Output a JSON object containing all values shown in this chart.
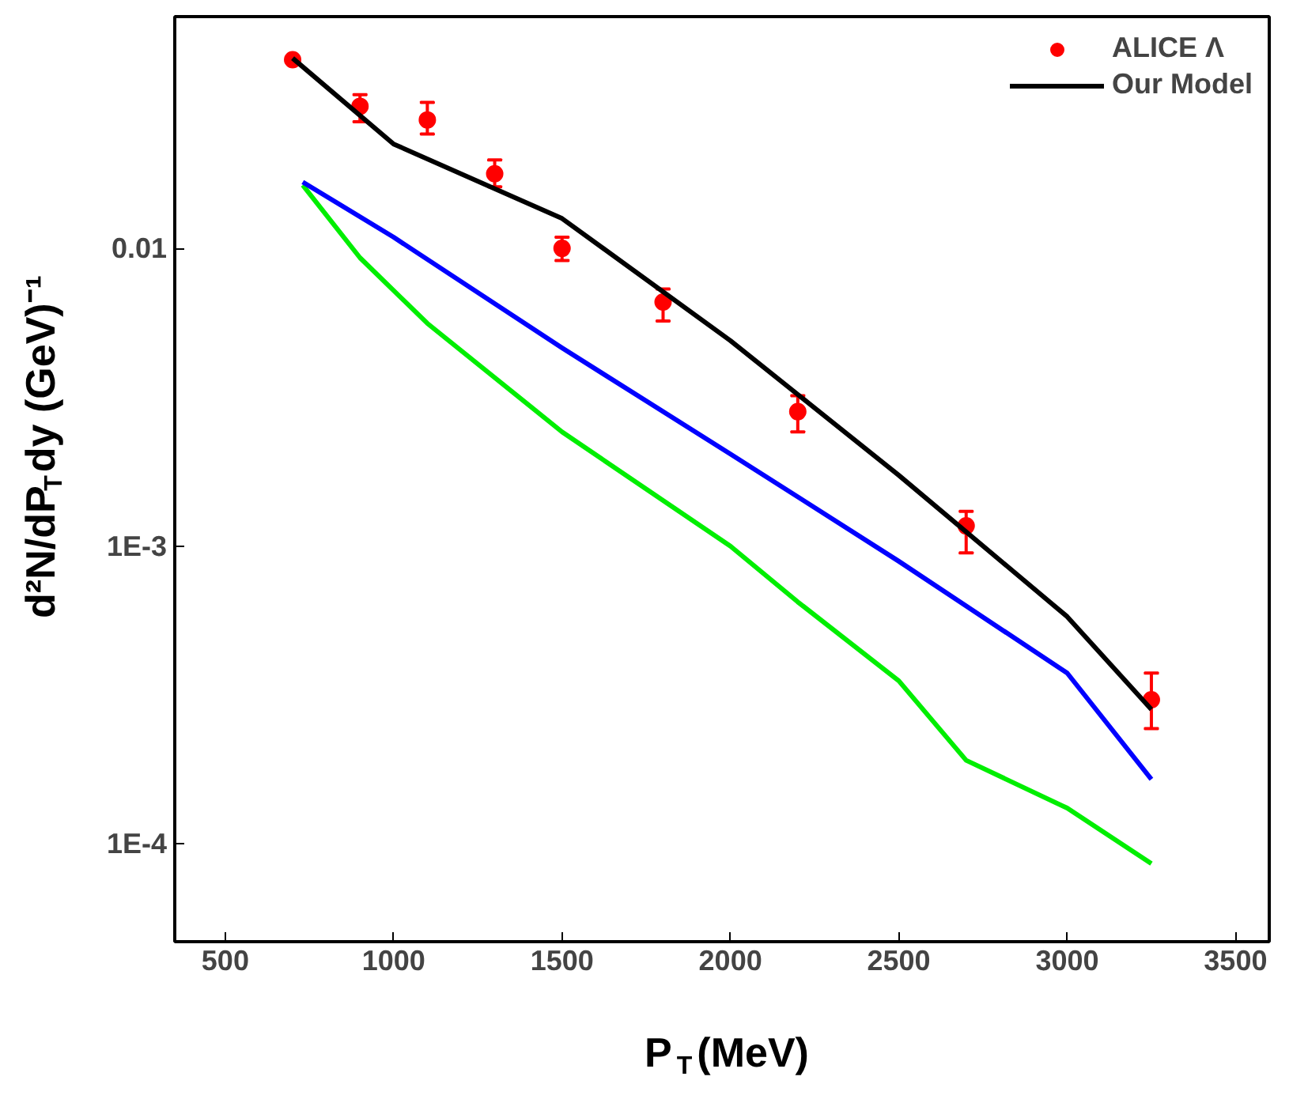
{
  "chart_data": {
    "type": "line",
    "xlabel": "P$_{T}$(MeV)",
    "ylabel": "d²N/dP$_{T}$dy (GeV)⁻¹",
    "log": "y",
    "grid": false,
    "legend": "top right",
    "xlim": [
      350,
      3600
    ],
    "xticks": [
      500,
      1000,
      1500,
      2000,
      2500,
      3000,
      3500
    ],
    "ylim": [
      4.7e-05,
      0.06
    ],
    "yticks": [
      {
        "value": 0.01,
        "label": "0.01"
      },
      {
        "value": 0.001,
        "label": "1E-3"
      },
      {
        "value": 0.0001,
        "label": "1E-4"
      }
    ],
    "series": [
      {
        "name": "ALICE Λ",
        "type": "scatter",
        "marker": "circle",
        "color": "#ff0000",
        "x": [
          700,
          900,
          1100,
          1300,
          1500,
          1800,
          2200,
          2700,
          3250
        ],
        "values": [
          0.043,
          0.03,
          0.027,
          0.0178,
          0.01,
          0.0066,
          0.00283,
          0.00117,
          0.000305
        ],
        "errors": [
          null,
          [
            0.0266,
            0.0328
          ],
          [
            0.0242,
            0.0309
          ],
          [
            0.0161,
            0.0198
          ],
          [
            0.0091,
            0.0109
          ],
          [
            0.0057,
            0.0073
          ],
          [
            0.00242,
            0.0032
          ],
          [
            0.00095,
            0.00131
          ],
          [
            0.000244,
            0.000375
          ]
        ]
      },
      {
        "name": "Our Model",
        "color": "#000000",
        "x": [
          700,
          1000,
          1500,
          2000,
          2500,
          3000,
          3250
        ],
        "values": [
          0.0435,
          0.0224,
          0.0126,
          0.0049,
          0.00173,
          0.00058,
          0.000283
        ]
      },
      {
        "color": "#00ee00",
        "x": [
          730,
          900,
          1100,
          1500,
          2000,
          2200,
          2500,
          2700,
          3000,
          3250
        ],
        "values": [
          0.0163,
          0.0093,
          0.0056,
          0.00242,
          0.001,
          0.00065,
          0.000353,
          0.000191,
          0.000132,
          8.6e-05
        ]
      },
      {
        "color": "#0000ff",
        "x": [
          730,
          1000,
          1500,
          2000,
          2500,
          3000,
          3250
        ],
        "values": [
          0.0167,
          0.0109,
          0.00463,
          0.00204,
          0.00089,
          0.000375,
          0.000165
        ]
      }
    ]
  }
}
